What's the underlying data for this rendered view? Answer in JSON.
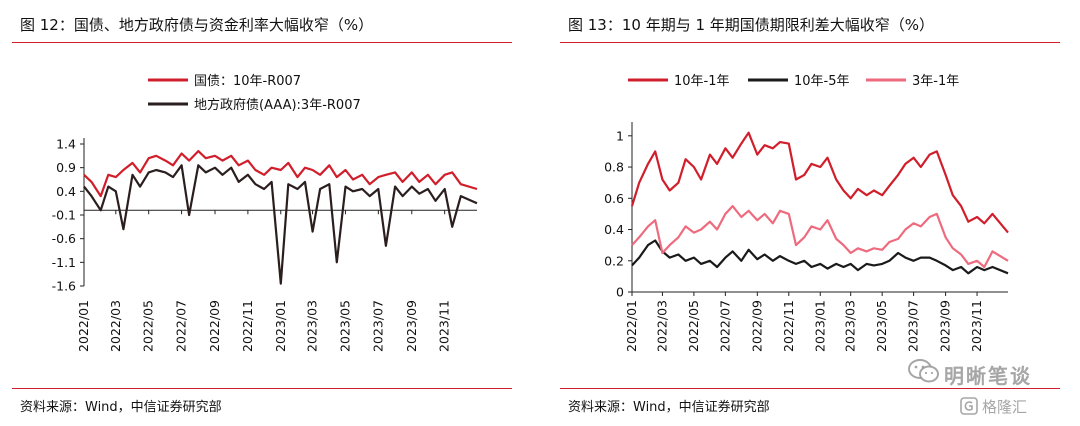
{
  "chart_data": [
    {
      "type": "line",
      "title": "图 12：国债、地方政府债与资金利率大幅收窄（%）",
      "source": "资料来源：Wind，中信证券研究部",
      "yticks": [
        "1.4",
        "0.9",
        "0.4",
        "-0.1",
        "-0.6",
        "-1.1",
        "-1.6"
      ],
      "ylim": [
        -1.6,
        1.4
      ],
      "xlim": [
        "2022-01-01",
        "2023-12-31"
      ],
      "xticks": [
        "2022/01",
        "2022/03",
        "2022/05",
        "2022/07",
        "2022/09",
        "2022/11",
        "2023/01",
        "2023/03",
        "2023/05",
        "2023/07",
        "2023/09",
        "2023/11"
      ],
      "legend": "top-left",
      "series": [
        {
          "name": "国债：10年-R007",
          "color": "#d01e2b",
          "x": [
            "2022-01-01",
            "2022-01-15",
            "2022-02-01",
            "2022-02-15",
            "2022-03-01",
            "2022-03-15",
            "2022-04-01",
            "2022-04-15",
            "2022-05-01",
            "2022-05-15",
            "2022-06-01",
            "2022-06-15",
            "2022-07-01",
            "2022-07-15",
            "2022-08-01",
            "2022-08-15",
            "2022-09-01",
            "2022-09-15",
            "2022-10-01",
            "2022-10-15",
            "2022-11-01",
            "2022-11-15",
            "2022-12-01",
            "2022-12-15",
            "2023-01-01",
            "2023-01-15",
            "2023-02-01",
            "2023-02-15",
            "2023-03-01",
            "2023-03-15",
            "2023-04-01",
            "2023-04-15",
            "2023-05-01",
            "2023-05-15",
            "2023-06-01",
            "2023-06-15",
            "2023-07-01",
            "2023-07-15",
            "2023-08-01",
            "2023-08-15",
            "2023-09-01",
            "2023-09-15",
            "2023-10-01",
            "2023-10-15",
            "2023-11-01",
            "2023-11-15",
            "2023-12-01",
            "2023-12-31"
          ],
          "values": [
            0.75,
            0.6,
            0.3,
            0.75,
            0.7,
            0.85,
            1.0,
            0.8,
            1.1,
            1.15,
            1.05,
            0.95,
            1.2,
            1.05,
            1.25,
            1.1,
            1.15,
            1.05,
            1.15,
            0.95,
            1.05,
            0.85,
            0.75,
            0.9,
            0.85,
            1.0,
            0.7,
            0.9,
            0.85,
            0.75,
            0.95,
            0.7,
            0.85,
            0.65,
            0.75,
            0.55,
            0.7,
            0.75,
            0.8,
            0.6,
            0.8,
            0.6,
            0.75,
            0.55,
            0.75,
            0.8,
            0.55,
            0.45
          ]
        },
        {
          "name": "地方政府债(AAA):3年-R007",
          "color": "#2b1e1e",
          "x": [
            "2022-01-01",
            "2022-01-15",
            "2022-02-01",
            "2022-02-15",
            "2022-03-01",
            "2022-03-15",
            "2022-04-01",
            "2022-04-15",
            "2022-05-01",
            "2022-05-15",
            "2022-06-01",
            "2022-06-15",
            "2022-07-01",
            "2022-07-15",
            "2022-08-01",
            "2022-08-15",
            "2022-09-01",
            "2022-09-15",
            "2022-10-01",
            "2022-10-15",
            "2022-11-01",
            "2022-11-15",
            "2022-12-01",
            "2022-12-15",
            "2023-01-01",
            "2023-01-15",
            "2023-02-01",
            "2023-02-15",
            "2023-03-01",
            "2023-03-15",
            "2023-04-01",
            "2023-04-15",
            "2023-05-01",
            "2023-05-15",
            "2023-06-01",
            "2023-06-15",
            "2023-07-01",
            "2023-07-15",
            "2023-08-01",
            "2023-08-15",
            "2023-09-01",
            "2023-09-15",
            "2023-10-01",
            "2023-10-15",
            "2023-11-01",
            "2023-11-15",
            "2023-12-01",
            "2023-12-31"
          ],
          "values": [
            0.5,
            0.3,
            0.0,
            0.5,
            0.4,
            -0.4,
            0.75,
            0.5,
            0.8,
            0.85,
            0.8,
            0.7,
            0.95,
            -0.1,
            0.95,
            0.8,
            0.9,
            0.75,
            0.9,
            0.6,
            0.75,
            0.55,
            0.45,
            0.6,
            -1.55,
            0.55,
            0.45,
            0.6,
            -0.45,
            0.45,
            0.55,
            -1.1,
            0.5,
            0.4,
            0.45,
            0.3,
            0.45,
            -0.75,
            0.5,
            0.3,
            0.5,
            0.35,
            0.45,
            0.2,
            0.45,
            -0.35,
            0.3,
            0.15
          ]
        }
      ]
    },
    {
      "type": "line",
      "title": "图 13：10 年期与 1 年期国债期限利差大幅收窄（%）",
      "source": "资料来源：Wind，中信证券研究部",
      "yticks": [
        "1",
        "0.8",
        "0.6",
        "0.4",
        "0.2",
        "0"
      ],
      "ylim": [
        0,
        1.05
      ],
      "xlim": [
        "2022-01-01",
        "2023-12-31"
      ],
      "xticks": [
        "2022/01",
        "2022/03",
        "2022/05",
        "2022/07",
        "2022/09",
        "2022/11",
        "2023/01",
        "2023/03",
        "2023/05",
        "2023/07",
        "2023/09",
        "2023/11"
      ],
      "legend": "top",
      "series": [
        {
          "name": "10年-1年",
          "color": "#d01e2b",
          "x": [
            "2022-01-01",
            "2022-01-15",
            "2022-02-01",
            "2022-02-15",
            "2022-03-01",
            "2022-03-15",
            "2022-04-01",
            "2022-04-15",
            "2022-05-01",
            "2022-05-15",
            "2022-06-01",
            "2022-06-15",
            "2022-07-01",
            "2022-07-15",
            "2022-08-01",
            "2022-08-15",
            "2022-09-01",
            "2022-09-15",
            "2022-10-01",
            "2022-10-15",
            "2022-11-01",
            "2022-11-15",
            "2022-12-01",
            "2022-12-15",
            "2023-01-01",
            "2023-01-15",
            "2023-02-01",
            "2023-02-15",
            "2023-03-01",
            "2023-03-15",
            "2023-04-01",
            "2023-04-15",
            "2023-05-01",
            "2023-05-15",
            "2023-06-01",
            "2023-06-15",
            "2023-07-01",
            "2023-07-15",
            "2023-08-01",
            "2023-08-15",
            "2023-09-01",
            "2023-09-15",
            "2023-10-01",
            "2023-10-15",
            "2023-11-01",
            "2023-11-15",
            "2023-12-01",
            "2023-12-31"
          ],
          "values": [
            0.55,
            0.7,
            0.82,
            0.9,
            0.72,
            0.65,
            0.7,
            0.85,
            0.8,
            0.72,
            0.88,
            0.82,
            0.92,
            0.86,
            0.95,
            1.02,
            0.88,
            0.94,
            0.92,
            0.96,
            0.95,
            0.72,
            0.75,
            0.82,
            0.8,
            0.86,
            0.72,
            0.65,
            0.6,
            0.66,
            0.62,
            0.65,
            0.62,
            0.68,
            0.75,
            0.82,
            0.86,
            0.8,
            0.88,
            0.9,
            0.75,
            0.62,
            0.55,
            0.45,
            0.48,
            0.44,
            0.5,
            0.38
          ]
        },
        {
          "name": "10年-5年",
          "color": "#1a1a1a",
          "x": [
            "2022-01-01",
            "2022-01-15",
            "2022-02-01",
            "2022-02-15",
            "2022-03-01",
            "2022-03-15",
            "2022-04-01",
            "2022-04-15",
            "2022-05-01",
            "2022-05-15",
            "2022-06-01",
            "2022-06-15",
            "2022-07-01",
            "2022-07-15",
            "2022-08-01",
            "2022-08-15",
            "2022-09-01",
            "2022-09-15",
            "2022-10-01",
            "2022-10-15",
            "2022-11-01",
            "2022-11-15",
            "2022-12-01",
            "2022-12-15",
            "2023-01-01",
            "2023-01-15",
            "2023-02-01",
            "2023-02-15",
            "2023-03-01",
            "2023-03-15",
            "2023-04-01",
            "2023-04-15",
            "2023-05-01",
            "2023-05-15",
            "2023-06-01",
            "2023-06-15",
            "2023-07-01",
            "2023-07-15",
            "2023-08-01",
            "2023-08-15",
            "2023-09-01",
            "2023-09-15",
            "2023-10-01",
            "2023-10-15",
            "2023-11-01",
            "2023-11-15",
            "2023-12-01",
            "2023-12-31"
          ],
          "values": [
            0.17,
            0.22,
            0.3,
            0.33,
            0.26,
            0.22,
            0.24,
            0.2,
            0.22,
            0.18,
            0.2,
            0.16,
            0.22,
            0.26,
            0.2,
            0.27,
            0.21,
            0.24,
            0.2,
            0.23,
            0.2,
            0.18,
            0.2,
            0.16,
            0.18,
            0.15,
            0.18,
            0.16,
            0.18,
            0.14,
            0.18,
            0.17,
            0.18,
            0.2,
            0.25,
            0.22,
            0.2,
            0.22,
            0.22,
            0.2,
            0.17,
            0.14,
            0.16,
            0.12,
            0.16,
            0.14,
            0.16,
            0.12
          ]
        },
        {
          "name": "3年-1年",
          "color": "#ee6b7e",
          "x": [
            "2022-01-01",
            "2022-01-15",
            "2022-02-01",
            "2022-02-15",
            "2022-03-01",
            "2022-03-15",
            "2022-04-01",
            "2022-04-15",
            "2022-05-01",
            "2022-05-15",
            "2022-06-01",
            "2022-06-15",
            "2022-07-01",
            "2022-07-15",
            "2022-08-01",
            "2022-08-15",
            "2022-09-01",
            "2022-09-15",
            "2022-10-01",
            "2022-10-15",
            "2022-11-01",
            "2022-11-15",
            "2022-12-01",
            "2022-12-15",
            "2023-01-01",
            "2023-01-15",
            "2023-02-01",
            "2023-02-15",
            "2023-03-01",
            "2023-03-15",
            "2023-04-01",
            "2023-04-15",
            "2023-05-01",
            "2023-05-15",
            "2023-06-01",
            "2023-06-15",
            "2023-07-01",
            "2023-07-15",
            "2023-08-01",
            "2023-08-15",
            "2023-09-01",
            "2023-09-15",
            "2023-10-01",
            "2023-10-15",
            "2023-11-01",
            "2023-11-15",
            "2023-12-01",
            "2023-12-31"
          ],
          "values": [
            0.3,
            0.35,
            0.42,
            0.46,
            0.25,
            0.3,
            0.35,
            0.42,
            0.38,
            0.4,
            0.45,
            0.4,
            0.5,
            0.55,
            0.48,
            0.52,
            0.46,
            0.5,
            0.44,
            0.52,
            0.5,
            0.3,
            0.35,
            0.42,
            0.4,
            0.46,
            0.34,
            0.3,
            0.25,
            0.28,
            0.26,
            0.28,
            0.27,
            0.32,
            0.34,
            0.4,
            0.44,
            0.42,
            0.48,
            0.5,
            0.35,
            0.28,
            0.24,
            0.18,
            0.2,
            0.16,
            0.26,
            0.2
          ]
        }
      ]
    }
  ],
  "watermark": {
    "brand": "明晰笔谈",
    "site": "格隆汇"
  }
}
